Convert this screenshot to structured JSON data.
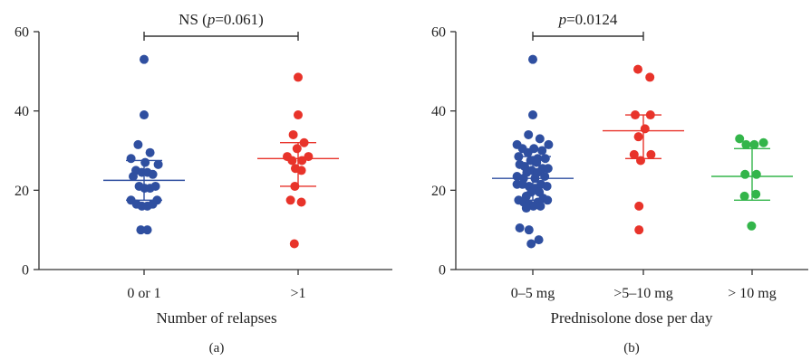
{
  "chart_data": [
    {
      "type": "scatter",
      "panel_label": "(a)",
      "xlabel": "Number of relapses",
      "ylabel": "",
      "ylim": [
        0,
        60
      ],
      "yticks": [
        0,
        20,
        40,
        60
      ],
      "grid": false,
      "categories": [
        "0 or 1",
        ">1"
      ],
      "annotation": {
        "prefix": "NS (",
        "italic": "p",
        "suffix": "=0.061)",
        "from": 0,
        "to": 1
      },
      "groups": [
        {
          "category": "0 or 1",
          "color": "#2f4fa0",
          "mean": 22.5,
          "sd_low": 17.5,
          "sd_high": 27.5,
          "points": [
            {
              "y": 53,
              "dx": 0
            },
            {
              "y": 39,
              "dx": 0
            },
            {
              "y": 31.5,
              "dx": -0.55
            },
            {
              "y": 29.5,
              "dx": 0.55
            },
            {
              "y": 28,
              "dx": -1.2
            },
            {
              "y": 27,
              "dx": 0.1
            },
            {
              "y": 26.5,
              "dx": 1.3
            },
            {
              "y": 25,
              "dx": -0.75
            },
            {
              "y": 24.5,
              "dx": -0.2
            },
            {
              "y": 24.5,
              "dx": 0.3
            },
            {
              "y": 24,
              "dx": 0.8
            },
            {
              "y": 23.5,
              "dx": -1.0
            },
            {
              "y": 21,
              "dx": -0.45
            },
            {
              "y": 20.5,
              "dx": 0.05
            },
            {
              "y": 20.5,
              "dx": 0.55
            },
            {
              "y": 21,
              "dx": 1.05
            },
            {
              "y": 17.5,
              "dx": -1.2
            },
            {
              "y": 17.5,
              "dx": 1.2
            },
            {
              "y": 16.5,
              "dx": -0.7
            },
            {
              "y": 16,
              "dx": -0.2
            },
            {
              "y": 16,
              "dx": 0.3
            },
            {
              "y": 16.5,
              "dx": 0.8
            },
            {
              "y": 10,
              "dx": -0.3
            },
            {
              "y": 10,
              "dx": 0.3
            }
          ]
        },
        {
          "category": ">1",
          "color": "#e8332a",
          "mean": 28,
          "sd_low": 21,
          "sd_high": 32,
          "points": [
            {
              "y": 48.5,
              "dx": 0
            },
            {
              "y": 39,
              "dx": 0
            },
            {
              "y": 34,
              "dx": -0.45
            },
            {
              "y": 32,
              "dx": 0.55
            },
            {
              "y": 30.5,
              "dx": -0.1
            },
            {
              "y": 28.5,
              "dx": -1.0
            },
            {
              "y": 28.5,
              "dx": 0.95
            },
            {
              "y": 27.5,
              "dx": -0.55
            },
            {
              "y": 27.5,
              "dx": 0.35
            },
            {
              "y": 25.5,
              "dx": -0.25
            },
            {
              "y": 25,
              "dx": 0.3
            },
            {
              "y": 21,
              "dx": -0.3
            },
            {
              "y": 17.5,
              "dx": -0.7
            },
            {
              "y": 17,
              "dx": 0.3
            },
            {
              "y": 6.5,
              "dx": -0.35
            }
          ]
        }
      ]
    },
    {
      "type": "scatter",
      "panel_label": "(b)",
      "xlabel": "Prednisolone dose per day",
      "ylabel": "",
      "ylim": [
        0,
        60
      ],
      "yticks": [
        0,
        20,
        40,
        60
      ],
      "grid": false,
      "categories": [
        "0–5 mg",
        ">5–10 mg",
        "> 10 mg"
      ],
      "annotation": {
        "prefix": "",
        "italic": "p",
        "suffix": "=0.0124",
        "from": 0,
        "to": 1
      },
      "groups": [
        {
          "category": "0–5 mg",
          "color": "#2f4fa0",
          "mean": 23,
          "sd_low": 17.5,
          "sd_high": 28.5,
          "points": [
            {
              "y": 53,
              "dx": 0
            },
            {
              "y": 39,
              "dx": 0
            },
            {
              "y": 34,
              "dx": -0.4
            },
            {
              "y": 33,
              "dx": 0.65
            },
            {
              "y": 31.5,
              "dx": -1.45
            },
            {
              "y": 31.5,
              "dx": 1.45
            },
            {
              "y": 30.5,
              "dx": -0.95
            },
            {
              "y": 30.5,
              "dx": 0.1
            },
            {
              "y": 30,
              "dx": 0.85
            },
            {
              "y": 29.5,
              "dx": -0.45
            },
            {
              "y": 28.5,
              "dx": -1.3
            },
            {
              "y": 28,
              "dx": 0.45
            },
            {
              "y": 28,
              "dx": 1.15
            },
            {
              "y": 27.5,
              "dx": -0.2
            },
            {
              "y": 27,
              "dx": 0.35
            },
            {
              "y": 26.5,
              "dx": -1.2
            },
            {
              "y": 26,
              "dx": -0.75
            },
            {
              "y": 25.5,
              "dx": 0.9
            },
            {
              "y": 25.5,
              "dx": 1.4
            },
            {
              "y": 25,
              "dx": -0.1
            },
            {
              "y": 24.5,
              "dx": -0.55
            },
            {
              "y": 24.5,
              "dx": 0.45
            },
            {
              "y": 23.5,
              "dx": -1.45
            },
            {
              "y": 23.5,
              "dx": 1.1
            },
            {
              "y": 23,
              "dx": -0.85
            },
            {
              "y": 23,
              "dx": 0.2
            },
            {
              "y": 21.5,
              "dx": -1.45
            },
            {
              "y": 21.5,
              "dx": -0.95
            },
            {
              "y": 21.5,
              "dx": 0.75
            },
            {
              "y": 21,
              "dx": -0.35
            },
            {
              "y": 21,
              "dx": 1.3
            },
            {
              "y": 20.5,
              "dx": 0.2
            },
            {
              "y": 19.5,
              "dx": -0.15
            },
            {
              "y": 19.5,
              "dx": 0.6
            },
            {
              "y": 18.5,
              "dx": -0.6
            },
            {
              "y": 18,
              "dx": 0.95
            },
            {
              "y": 17.5,
              "dx": -1.3
            },
            {
              "y": 17.5,
              "dx": 1.35
            },
            {
              "y": 17,
              "dx": -0.85
            },
            {
              "y": 17,
              "dx": 0.45
            },
            {
              "y": 16.5,
              "dx": -0.35
            },
            {
              "y": 16,
              "dx": 0.05
            },
            {
              "y": 16,
              "dx": 0.7
            },
            {
              "y": 15.5,
              "dx": -0.6
            },
            {
              "y": 10.5,
              "dx": -1.2
            },
            {
              "y": 10,
              "dx": -0.35
            },
            {
              "y": 7.5,
              "dx": 0.55
            },
            {
              "y": 6.5,
              "dx": -0.15
            }
          ]
        },
        {
          "category": ">5–10 mg",
          "color": "#e8332a",
          "mean": 35,
          "sd_low": 28,
          "sd_high": 39,
          "points": [
            {
              "y": 50.5,
              "dx": -0.5
            },
            {
              "y": 48.5,
              "dx": 0.6
            },
            {
              "y": 39,
              "dx": -0.75
            },
            {
              "y": 39,
              "dx": 0.65
            },
            {
              "y": 35.5,
              "dx": 0.15
            },
            {
              "y": 33.5,
              "dx": -0.45
            },
            {
              "y": 29,
              "dx": -0.85
            },
            {
              "y": 29,
              "dx": 0.7
            },
            {
              "y": 27.5,
              "dx": -0.25
            },
            {
              "y": 16,
              "dx": -0.4
            },
            {
              "y": 10,
              "dx": -0.4
            }
          ]
        },
        {
          "category": "> 10 mg",
          "color": "#33b54a",
          "mean": 23.5,
          "sd_low": 17.5,
          "sd_high": 30.5,
          "points": [
            {
              "y": 33,
              "dx": -1.15
            },
            {
              "y": 32,
              "dx": 1.05
            },
            {
              "y": 31.5,
              "dx": 0.2
            },
            {
              "y": 31.5,
              "dx": -0.55
            },
            {
              "y": 24,
              "dx": -0.65
            },
            {
              "y": 24,
              "dx": 0.4
            },
            {
              "y": 19,
              "dx": 0.35
            },
            {
              "y": 18.5,
              "dx": -0.7
            },
            {
              "y": 11,
              "dx": -0.05
            }
          ]
        }
      ]
    }
  ]
}
